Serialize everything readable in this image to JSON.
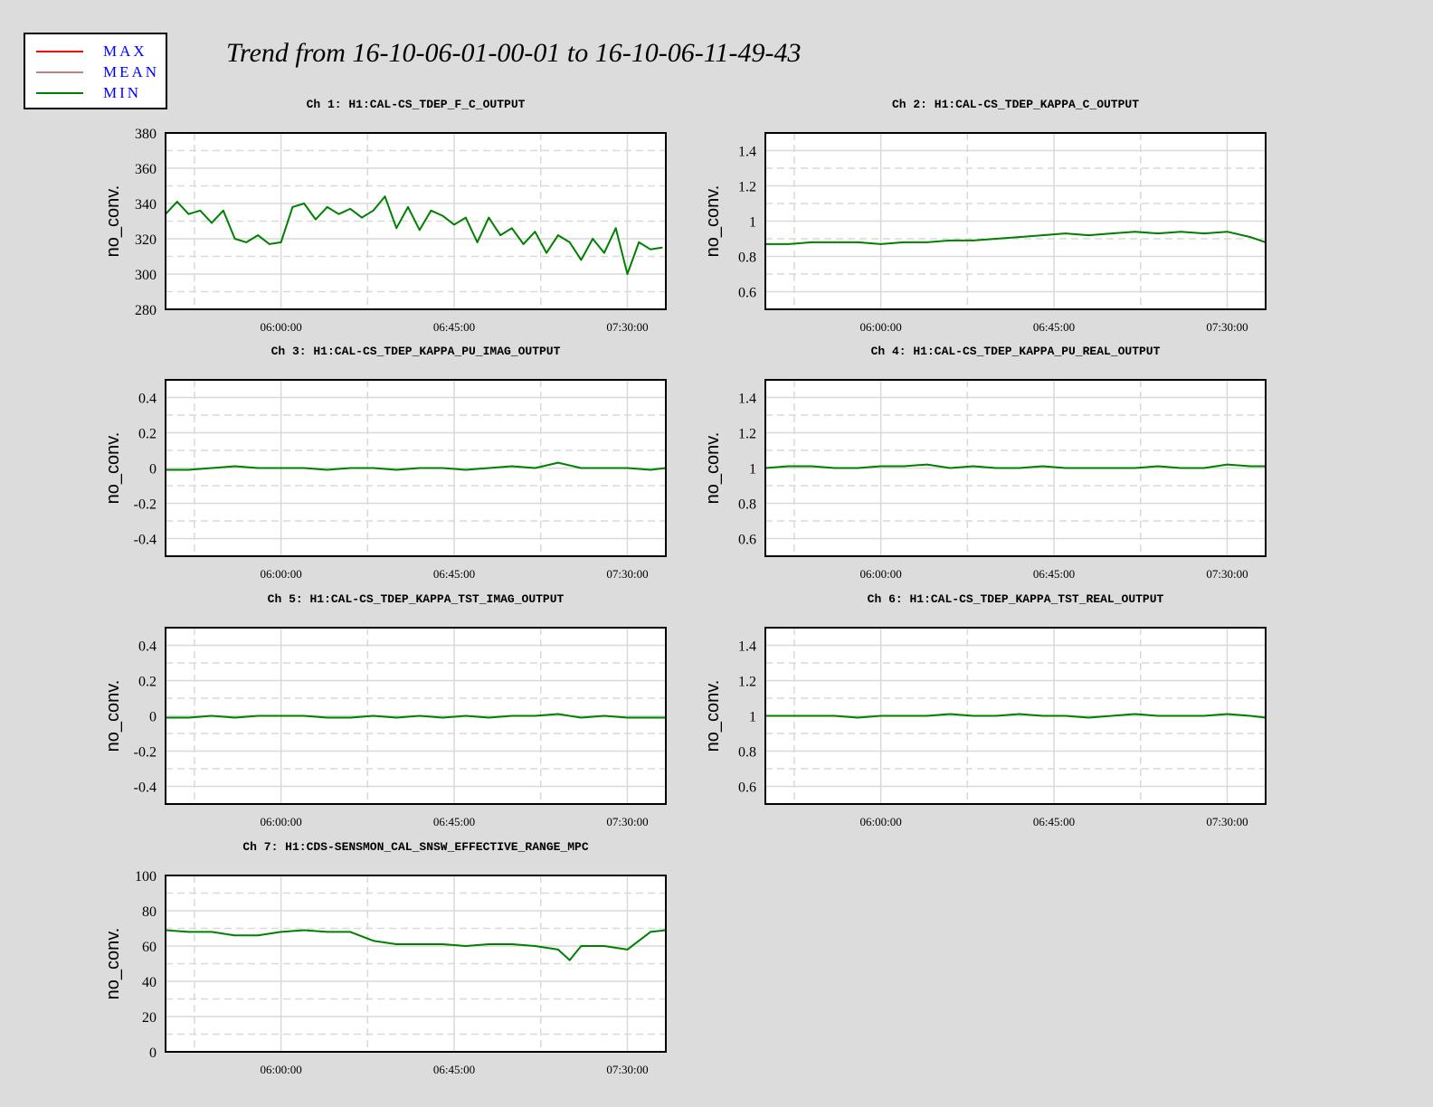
{
  "title": "Trend from 16-10-06-01-00-01 to 16-10-06-11-49-43",
  "legend": {
    "items": [
      {
        "label": "MAX",
        "color": "#ff0000"
      },
      {
        "label": "MEAN",
        "color": "#c08080"
      },
      {
        "label": "MIN",
        "color": "#008000"
      }
    ]
  },
  "colors": {
    "series": "#008000",
    "background": "#dcdcdc",
    "plot": "#ffffff",
    "grid": "#d9d9d9"
  },
  "chart_data": [
    {
      "type": "line",
      "title": "Ch 1: H1:CAL-CS_TDEP_F_C_OUTPUT",
      "ylabel": "no_conv.",
      "ylim": [
        280,
        380
      ],
      "yticks": [
        "280",
        "300",
        "320",
        "340",
        "360",
        "380"
      ],
      "xticks": [
        "06:00:00",
        "06:45:00",
        "07:30:00"
      ],
      "xlim": [
        "05:30:00",
        "07:40:00"
      ],
      "grid": true,
      "series": [
        {
          "name": "MIN",
          "x": [
            "05:30:00",
            "05:33:00",
            "05:36:00",
            "05:39:00",
            "05:42:00",
            "05:45:00",
            "05:48:00",
            "05:51:00",
            "05:54:00",
            "05:57:00",
            "06:00:00",
            "06:03:00",
            "06:06:00",
            "06:09:00",
            "06:12:00",
            "06:15:00",
            "06:18:00",
            "06:21:00",
            "06:24:00",
            "06:27:00",
            "06:30:00",
            "06:33:00",
            "06:36:00",
            "06:39:00",
            "06:42:00",
            "06:45:00",
            "06:48:00",
            "06:51:00",
            "06:54:00",
            "06:57:00",
            "07:00:00",
            "07:03:00",
            "07:06:00",
            "07:09:00",
            "07:12:00",
            "07:15:00",
            "07:18:00",
            "07:21:00",
            "07:24:00",
            "07:27:00",
            "07:30:00",
            "07:33:00",
            "07:36:00",
            "07:39:00"
          ],
          "values": [
            334,
            341,
            334,
            336,
            329,
            336,
            320,
            318,
            322,
            317,
            318,
            338,
            340,
            331,
            338,
            334,
            337,
            332,
            336,
            344,
            326,
            338,
            325,
            336,
            333,
            328,
            332,
            318,
            332,
            322,
            326,
            317,
            324,
            312,
            322,
            318,
            308,
            320,
            312,
            326,
            300,
            318,
            314,
            315
          ]
        }
      ]
    },
    {
      "type": "line",
      "title": "Ch 2: H1:CAL-CS_TDEP_KAPPA_C_OUTPUT",
      "ylabel": "no_conv.",
      "ylim": [
        0.5,
        1.5
      ],
      "yticks": [
        "0.6",
        "0.8",
        "1",
        "1.2",
        "1.4"
      ],
      "xticks": [
        "06:00:00",
        "06:45:00",
        "07:30:00"
      ],
      "xlim": [
        "05:30:00",
        "07:40:00"
      ],
      "grid": true,
      "series": [
        {
          "name": "MIN",
          "x": [
            "05:30:00",
            "05:36:00",
            "05:42:00",
            "05:48:00",
            "05:54:00",
            "06:00:00",
            "06:06:00",
            "06:12:00",
            "06:18:00",
            "06:24:00",
            "06:30:00",
            "06:36:00",
            "06:42:00",
            "06:48:00",
            "06:54:00",
            "07:00:00",
            "07:06:00",
            "07:12:00",
            "07:18:00",
            "07:24:00",
            "07:30:00",
            "07:36:00",
            "07:40:00"
          ],
          "values": [
            0.87,
            0.87,
            0.88,
            0.88,
            0.88,
            0.87,
            0.88,
            0.88,
            0.89,
            0.89,
            0.9,
            0.91,
            0.92,
            0.93,
            0.92,
            0.93,
            0.94,
            0.93,
            0.94,
            0.93,
            0.94,
            0.91,
            0.88
          ]
        }
      ]
    },
    {
      "type": "line",
      "title": "Ch 3: H1:CAL-CS_TDEP_KAPPA_PU_IMAG_OUTPUT",
      "ylabel": "no_conv.",
      "ylim": [
        -0.5,
        0.5
      ],
      "yticks": [
        "-0.4",
        "-0.2",
        "0",
        "0.2",
        "0.4"
      ],
      "xticks": [
        "06:00:00",
        "06:45:00",
        "07:30:00"
      ],
      "xlim": [
        "05:30:00",
        "07:40:00"
      ],
      "grid": true,
      "series": [
        {
          "name": "MIN",
          "x": [
            "05:30:00",
            "05:36:00",
            "05:42:00",
            "05:48:00",
            "05:54:00",
            "06:00:00",
            "06:06:00",
            "06:12:00",
            "06:18:00",
            "06:24:00",
            "06:30:00",
            "06:36:00",
            "06:42:00",
            "06:48:00",
            "06:54:00",
            "07:00:00",
            "07:06:00",
            "07:12:00",
            "07:18:00",
            "07:24:00",
            "07:30:00",
            "07:36:00",
            "07:40:00"
          ],
          "values": [
            -0.01,
            -0.01,
            0.0,
            0.01,
            0.0,
            0.0,
            0.0,
            -0.01,
            0.0,
            0.0,
            -0.01,
            0.0,
            0.0,
            -0.01,
            0.0,
            0.01,
            0.0,
            0.03,
            0.0,
            0.0,
            0.0,
            -0.01,
            0.0
          ]
        }
      ]
    },
    {
      "type": "line",
      "title": "Ch 4: H1:CAL-CS_TDEP_KAPPA_PU_REAL_OUTPUT",
      "ylabel": "no_conv.",
      "ylim": [
        0.5,
        1.5
      ],
      "yticks": [
        "0.6",
        "0.8",
        "1",
        "1.2",
        "1.4"
      ],
      "xticks": [
        "06:00:00",
        "06:45:00",
        "07:30:00"
      ],
      "xlim": [
        "05:30:00",
        "07:40:00"
      ],
      "grid": true,
      "series": [
        {
          "name": "MIN",
          "x": [
            "05:30:00",
            "05:36:00",
            "05:42:00",
            "05:48:00",
            "05:54:00",
            "06:00:00",
            "06:06:00",
            "06:12:00",
            "06:18:00",
            "06:24:00",
            "06:30:00",
            "06:36:00",
            "06:42:00",
            "06:48:00",
            "06:54:00",
            "07:00:00",
            "07:06:00",
            "07:12:00",
            "07:18:00",
            "07:24:00",
            "07:30:00",
            "07:36:00",
            "07:40:00"
          ],
          "values": [
            1.0,
            1.01,
            1.01,
            1.0,
            1.0,
            1.01,
            1.01,
            1.02,
            1.0,
            1.01,
            1.0,
            1.0,
            1.01,
            1.0,
            1.0,
            1.0,
            1.0,
            1.01,
            1.0,
            1.0,
            1.02,
            1.01,
            1.01
          ]
        }
      ]
    },
    {
      "type": "line",
      "title": "Ch 5: H1:CAL-CS_TDEP_KAPPA_TST_IMAG_OUTPUT",
      "ylabel": "no_conv.",
      "ylim": [
        -0.5,
        0.5
      ],
      "yticks": [
        "-0.4",
        "-0.2",
        "0",
        "0.2",
        "0.4"
      ],
      "xticks": [
        "06:00:00",
        "06:45:00",
        "07:30:00"
      ],
      "xlim": [
        "05:30:00",
        "07:40:00"
      ],
      "grid": true,
      "series": [
        {
          "name": "MIN",
          "x": [
            "05:30:00",
            "05:36:00",
            "05:42:00",
            "05:48:00",
            "05:54:00",
            "06:00:00",
            "06:06:00",
            "06:12:00",
            "06:18:00",
            "06:24:00",
            "06:30:00",
            "06:36:00",
            "06:42:00",
            "06:48:00",
            "06:54:00",
            "07:00:00",
            "07:06:00",
            "07:12:00",
            "07:18:00",
            "07:24:00",
            "07:30:00",
            "07:36:00",
            "07:40:00"
          ],
          "values": [
            -0.01,
            -0.01,
            0.0,
            -0.01,
            0.0,
            0.0,
            0.0,
            -0.01,
            -0.01,
            0.0,
            -0.01,
            0.0,
            -0.01,
            0.0,
            -0.01,
            0.0,
            0.0,
            0.01,
            -0.01,
            0.0,
            -0.01,
            -0.01,
            -0.01
          ]
        }
      ]
    },
    {
      "type": "line",
      "title": "Ch 6: H1:CAL-CS_TDEP_KAPPA_TST_REAL_OUTPUT",
      "ylabel": "no_conv.",
      "ylim": [
        0.5,
        1.5
      ],
      "yticks": [
        "0.6",
        "0.8",
        "1",
        "1.2",
        "1.4"
      ],
      "xticks": [
        "06:00:00",
        "06:45:00",
        "07:30:00"
      ],
      "xlim": [
        "05:30:00",
        "07:40:00"
      ],
      "grid": true,
      "series": [
        {
          "name": "MIN",
          "x": [
            "05:30:00",
            "05:36:00",
            "05:42:00",
            "05:48:00",
            "05:54:00",
            "06:00:00",
            "06:06:00",
            "06:12:00",
            "06:18:00",
            "06:24:00",
            "06:30:00",
            "06:36:00",
            "06:42:00",
            "06:48:00",
            "06:54:00",
            "07:00:00",
            "07:06:00",
            "07:12:00",
            "07:18:00",
            "07:24:00",
            "07:30:00",
            "07:36:00",
            "07:40:00"
          ],
          "values": [
            1.0,
            1.0,
            1.0,
            1.0,
            0.99,
            1.0,
            1.0,
            1.0,
            1.01,
            1.0,
            1.0,
            1.01,
            1.0,
            1.0,
            0.99,
            1.0,
            1.01,
            1.0,
            1.0,
            1.0,
            1.01,
            1.0,
            0.99
          ]
        }
      ]
    },
    {
      "type": "line",
      "title": "Ch 7: H1:CDS-SENSMON_CAL_SNSW_EFFECTIVE_RANGE_MPC",
      "ylabel": "no_conv.",
      "ylim": [
        0,
        100
      ],
      "yticks": [
        "0",
        "20",
        "40",
        "60",
        "80",
        "100"
      ],
      "xticks": [
        "06:00:00",
        "06:45:00",
        "07:30:00"
      ],
      "xlim": [
        "05:30:00",
        "07:40:00"
      ],
      "grid": true,
      "series": [
        {
          "name": "MIN",
          "x": [
            "05:30:00",
            "05:36:00",
            "05:42:00",
            "05:48:00",
            "05:54:00",
            "06:00:00",
            "06:06:00",
            "06:12:00",
            "06:18:00",
            "06:24:00",
            "06:30:00",
            "06:36:00",
            "06:42:00",
            "06:48:00",
            "06:54:00",
            "07:00:00",
            "07:06:00",
            "07:12:00",
            "07:15:00",
            "07:18:00",
            "07:24:00",
            "07:30:00",
            "07:36:00",
            "07:40:00"
          ],
          "values": [
            69,
            68,
            68,
            66,
            66,
            68,
            69,
            68,
            68,
            63,
            61,
            61,
            61,
            60,
            61,
            61,
            60,
            58,
            52,
            60,
            60,
            58,
            68,
            69
          ]
        }
      ]
    }
  ]
}
